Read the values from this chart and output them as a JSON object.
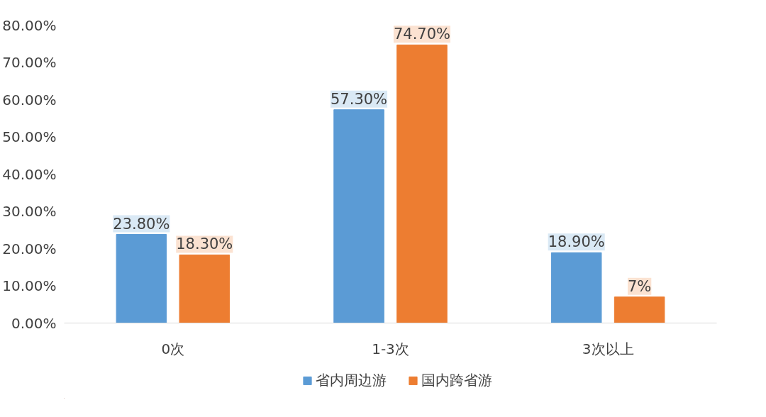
{
  "chart_data": {
    "type": "bar",
    "categories": [
      "0次",
      "1-3次",
      "3次以上"
    ],
    "series": [
      {
        "name": "省内周边游",
        "color": "#5b9bd5",
        "values": [
          23.8,
          57.3,
          18.9
        ],
        "value_labels": [
          "23.80%",
          "57.30%",
          "18.90%"
        ]
      },
      {
        "name": "国内跨省游",
        "color": "#ed7d31",
        "values": [
          18.3,
          74.7,
          7
        ],
        "value_labels": [
          "18.30%",
          "74.70%",
          "7%"
        ]
      }
    ],
    "ylim": [
      0,
      80
    ],
    "yticks": [
      {
        "value": 0,
        "label": "0.00%"
      },
      {
        "value": 10,
        "label": "10.00%"
      },
      {
        "value": 20,
        "label": "20.00%"
      },
      {
        "value": 30,
        "label": "30.00%"
      },
      {
        "value": 40,
        "label": "40.00%"
      },
      {
        "value": 50,
        "label": "50.00%"
      },
      {
        "value": 60,
        "label": "60.00%"
      },
      {
        "value": 70,
        "label": "70.00%"
      },
      {
        "value": 80,
        "label": "80.00%"
      }
    ],
    "grid": false,
    "legend": "bottom"
  }
}
